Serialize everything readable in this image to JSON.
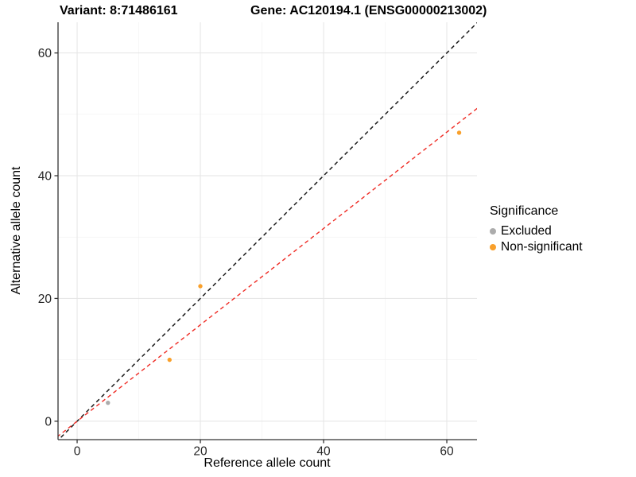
{
  "titles": {
    "left": "Variant: 8:71486161",
    "right": "Gene: AC120194.1 (ENSG00000213002)"
  },
  "legend": {
    "title": "Significance",
    "items": [
      {
        "label": "Excluded",
        "color": "#ACACAC"
      },
      {
        "label": "Non-significant",
        "color": "#F9A02B"
      }
    ]
  },
  "chart_data": {
    "type": "scatter",
    "title": "Variant: 8:71486161   Gene: AC120194.1 (ENSG00000213002)",
    "xlabel": "Reference allele count",
    "ylabel": "Alternative allele count",
    "xlim": [
      -3.1,
      64.9
    ],
    "ylim": [
      -3.0,
      65.0
    ],
    "x_ticks": [
      0,
      20,
      40,
      60
    ],
    "y_ticks": [
      0,
      20,
      40,
      60
    ],
    "x_minor": [
      10,
      30,
      50
    ],
    "y_minor": [
      10,
      30,
      50
    ],
    "grid": {
      "major_color": "#E6E6E6",
      "minor_color": "#F2F2F2",
      "on": true
    },
    "axis_line_color": "#333333",
    "tick_label_color": "#262626",
    "legend_position": "right",
    "series": [
      {
        "name": "Excluded",
        "color": "#ACACAC",
        "points": [
          {
            "x": 5,
            "y": 3
          }
        ]
      },
      {
        "name": "Non-significant",
        "color": "#F9A02B",
        "points": [
          {
            "x": 15,
            "y": 10
          },
          {
            "x": 20,
            "y": 22
          },
          {
            "x": 62,
            "y": 47
          }
        ]
      }
    ],
    "lines": [
      {
        "name": "identity-line",
        "slope": 1.0,
        "intercept": 0,
        "color": "#1A1A1A",
        "dash": "5,4",
        "width": 1.5
      },
      {
        "name": "fit-line",
        "slope": 0.785,
        "intercept": 0,
        "color": "#EF2B24",
        "dash": "5,4",
        "width": 1.4
      }
    ]
  }
}
